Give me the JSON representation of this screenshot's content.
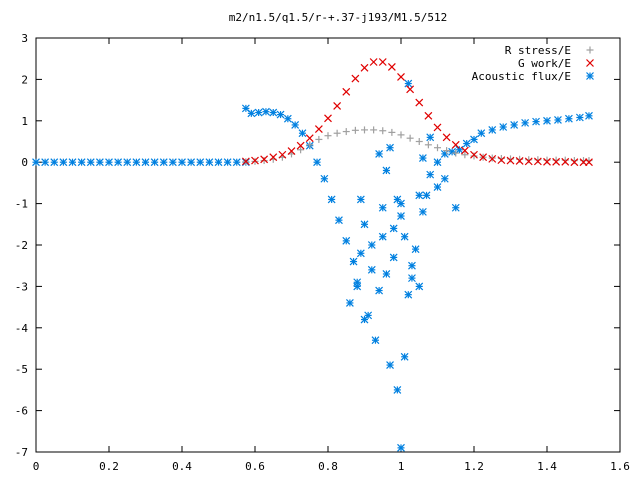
{
  "chart_data": {
    "type": "scatter",
    "title": "m2/n1.5/q1.5/r-+.37-j193/M1.5/512",
    "xlabel": "",
    "ylabel": "",
    "xlim": [
      0,
      1.6
    ],
    "ylim": [
      -7,
      3
    ],
    "grid": false,
    "legend_position": "top-right",
    "x_ticks": [
      0,
      0.2,
      0.4,
      0.6,
      0.8,
      1,
      1.2,
      1.4,
      1.6
    ],
    "x_tick_labels": [
      "0",
      "0.2",
      "0.4",
      "0.6",
      "0.8",
      "1",
      "1.2",
      "1.4",
      "1.6"
    ],
    "y_ticks": [
      -7,
      -6,
      -5,
      -4,
      -3,
      -2,
      -1,
      0,
      1,
      2,
      3
    ],
    "y_tick_labels": [
      "-7",
      "-6",
      "-5",
      "-4",
      "-3",
      "-2",
      "-1",
      "0",
      "1",
      "2",
      "3"
    ],
    "series": [
      {
        "name": "R stress/E",
        "marker": "plus",
        "color": "#a0a0a0",
        "x": [
          0.575,
          0.6,
          0.625,
          0.65,
          0.675,
          0.7,
          0.725,
          0.75,
          0.775,
          0.8,
          0.825,
          0.85,
          0.875,
          0.9,
          0.925,
          0.95,
          0.975,
          1.0,
          1.025,
          1.05,
          1.075,
          1.1,
          1.125,
          1.15,
          1.175,
          1.2,
          1.225,
          1.25,
          1.275,
          1.3,
          1.325,
          1.35,
          1.375,
          1.4,
          1.425,
          1.45,
          1.475,
          1.5,
          1.515
        ],
        "y": [
          0.01,
          0.02,
          0.04,
          0.07,
          0.12,
          0.2,
          0.3,
          0.42,
          0.55,
          0.64,
          0.7,
          0.74,
          0.77,
          0.78,
          0.78,
          0.76,
          0.72,
          0.66,
          0.58,
          0.5,
          0.42,
          0.35,
          0.28,
          0.22,
          0.18,
          0.15,
          0.12,
          0.1,
          0.09,
          0.08,
          0.07,
          0.06,
          0.06,
          0.05,
          0.05,
          0.05,
          0.04,
          0.04,
          0.04
        ]
      },
      {
        "name": "G work/E",
        "marker": "cross",
        "color": "#e00000",
        "x": [
          0.575,
          0.6,
          0.625,
          0.65,
          0.675,
          0.7,
          0.725,
          0.75,
          0.775,
          0.8,
          0.825,
          0.85,
          0.875,
          0.9,
          0.925,
          0.95,
          0.975,
          1.0,
          1.025,
          1.05,
          1.075,
          1.1,
          1.125,
          1.15,
          1.175,
          1.2,
          1.225,
          1.25,
          1.275,
          1.3,
          1.325,
          1.35,
          1.375,
          1.4,
          1.425,
          1.45,
          1.475,
          1.5,
          1.515
        ],
        "y": [
          0.02,
          0.04,
          0.07,
          0.12,
          0.18,
          0.27,
          0.4,
          0.58,
          0.8,
          1.06,
          1.36,
          1.7,
          2.02,
          2.28,
          2.42,
          2.42,
          2.3,
          2.06,
          1.76,
          1.44,
          1.12,
          0.84,
          0.6,
          0.42,
          0.28,
          0.18,
          0.12,
          0.08,
          0.05,
          0.04,
          0.03,
          0.02,
          0.02,
          0.01,
          0.01,
          0.01,
          0.0,
          0.0,
          0.0
        ]
      },
      {
        "name": "Acoustic flux/E",
        "marker": "star",
        "color": "#0080e0",
        "x": [
          0,
          0.025,
          0.05,
          0.075,
          0.1,
          0.125,
          0.15,
          0.175,
          0.2,
          0.225,
          0.25,
          0.275,
          0.3,
          0.325,
          0.35,
          0.375,
          0.4,
          0.425,
          0.45,
          0.475,
          0.5,
          0.525,
          0.55,
          0.575,
          0.575,
          0.59,
          0.61,
          0.63,
          0.65,
          0.67,
          0.69,
          0.71,
          0.73,
          0.75,
          0.77,
          0.79,
          0.81,
          0.83,
          0.85,
          0.87,
          0.88,
          0.86,
          0.88,
          0.89,
          0.9,
          0.9,
          0.91,
          0.92,
          0.93,
          0.94,
          0.95,
          0.96,
          0.97,
          0.98,
          0.99,
          1.0,
          1.01,
          1.02,
          1.03,
          1.04,
          1.05,
          1.06,
          1.07,
          1.08,
          1.1,
          1.12,
          1.14,
          1.16,
          1.18,
          1.2,
          1.22,
          1.25,
          1.28,
          1.31,
          1.34,
          1.37,
          1.4,
          1.43,
          1.46,
          1.49,
          1.515,
          0.89,
          0.95,
          1.0,
          1.05,
          1.1,
          0.92,
          0.98,
          1.03,
          0.97,
          1.02,
          1.0,
          0.96,
          1.08,
          1.12,
          1.15,
          1.06,
          0.94,
          0.99,
          1.01
        ],
        "y": [
          0,
          0,
          0,
          0,
          0,
          0,
          0,
          0,
          0,
          0,
          0,
          0,
          0,
          0,
          0,
          0,
          0,
          0,
          0,
          0,
          0,
          0,
          0,
          0,
          1.3,
          1.18,
          1.2,
          1.22,
          1.2,
          1.15,
          1.05,
          0.9,
          0.7,
          0.4,
          0.0,
          -0.4,
          -0.9,
          -1.4,
          -1.9,
          -2.4,
          -2.9,
          -3.4,
          -3.0,
          -2.2,
          -1.5,
          -3.8,
          -3.7,
          -2.6,
          -4.3,
          -3.1,
          -1.8,
          -2.7,
          -4.9,
          -2.3,
          -5.5,
          -6.9,
          -4.7,
          -3.2,
          -2.5,
          -2.1,
          -3.0,
          -1.2,
          -0.8,
          -0.3,
          0.0,
          0.2,
          0.25,
          0.3,
          0.45,
          0.55,
          0.7,
          0.78,
          0.85,
          0.9,
          0.95,
          0.98,
          1.0,
          1.02,
          1.05,
          1.08,
          1.12,
          -0.9,
          -1.1,
          -1.3,
          -0.8,
          -0.6,
          -2.0,
          -1.6,
          -2.8,
          0.35,
          1.9,
          -1.0,
          -0.2,
          0.6,
          -0.4,
          -1.1,
          0.1,
          0.2,
          -0.9,
          -1.8
        ]
      }
    ]
  }
}
